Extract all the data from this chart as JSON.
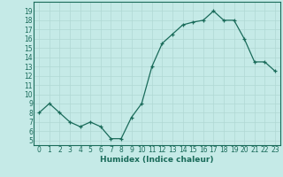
{
  "x": [
    0,
    1,
    2,
    3,
    4,
    5,
    6,
    7,
    8,
    9,
    10,
    11,
    12,
    13,
    14,
    15,
    16,
    17,
    18,
    19,
    20,
    21,
    22,
    23
  ],
  "y": [
    8,
    9,
    8,
    7,
    6.5,
    7,
    6.5,
    5.2,
    5.2,
    7.5,
    9,
    13,
    15.5,
    16.5,
    17.5,
    17.8,
    18,
    19,
    18,
    18,
    16,
    13.5,
    13.5,
    12.5
  ],
  "line_color": "#1a6b5a",
  "marker": "+",
  "marker_size": 3,
  "line_width": 0.9,
  "bg_color": "#c5eae7",
  "grid_color": "#b0d8d4",
  "xlabel": "Humidex (Indice chaleur)",
  "xlim": [
    -0.5,
    23.5
  ],
  "ylim": [
    4.5,
    20
  ],
  "yticks": [
    5,
    6,
    7,
    8,
    9,
    10,
    11,
    12,
    13,
    14,
    15,
    16,
    17,
    18,
    19
  ],
  "xticks": [
    0,
    1,
    2,
    3,
    4,
    5,
    6,
    7,
    8,
    9,
    10,
    11,
    12,
    13,
    14,
    15,
    16,
    17,
    18,
    19,
    20,
    21,
    22,
    23
  ],
  "tick_fontsize": 5.5,
  "label_fontsize": 6.5
}
